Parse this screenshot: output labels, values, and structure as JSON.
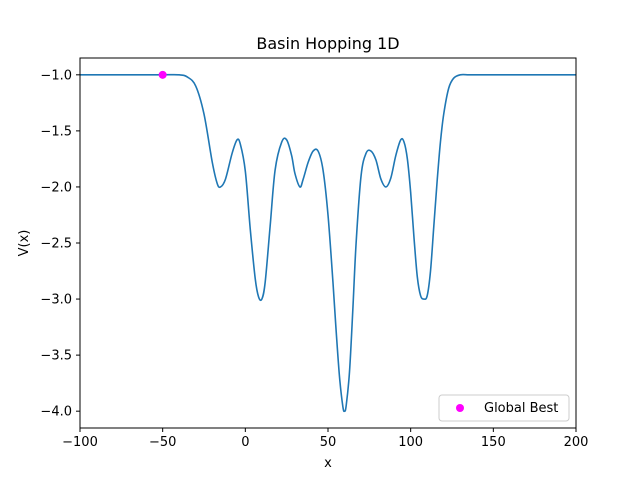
{
  "chart_data": {
    "type": "line",
    "title": "Basin Hopping 1D",
    "xlabel": "x",
    "ylabel": "V(x)",
    "xlim": [
      -100,
      200
    ],
    "ylim": [
      -4.15,
      -0.85
    ],
    "xticks": [
      -100,
      -50,
      0,
      50,
      100,
      150,
      200
    ],
    "yticks": [
      -4.0,
      -3.5,
      -3.0,
      -2.5,
      -2.0,
      -1.5,
      -1.0
    ],
    "xtick_labels": [
      "−100",
      "−50",
      "0",
      "50",
      "100",
      "150",
      "200"
    ],
    "ytick_labels": [
      "−4.0",
      "−3.5",
      "−3.0",
      "−2.5",
      "−2.0",
      "−1.5",
      "−1.0"
    ],
    "grid": false,
    "legend_position": "lower-right",
    "series": [
      {
        "kind": "line",
        "color": "#1f77b4",
        "x": [
          -100,
          -60,
          -50,
          -40,
          -35,
          -30,
          -25,
          -20,
          -17,
          -15,
          -12,
          -8,
          -5,
          -3,
          0,
          3,
          6,
          8,
          10,
          12,
          15,
          18,
          22,
          25,
          28,
          30,
          33,
          35,
          38,
          41,
          44,
          47,
          50,
          53,
          55,
          57,
          59,
          60,
          61,
          63,
          65,
          67,
          70,
          73,
          76,
          79,
          82,
          85,
          88,
          91,
          94,
          96,
          98,
          100,
          102,
          104,
          106,
          108,
          110,
          112,
          114,
          116,
          118,
          120,
          123,
          126,
          130,
          135,
          140,
          150,
          200
        ],
        "y": [
          -1.0,
          -1.0,
          -1.0,
          -1.0,
          -1.02,
          -1.1,
          -1.35,
          -1.78,
          -1.97,
          -2.0,
          -1.93,
          -1.7,
          -1.58,
          -1.62,
          -1.86,
          -2.38,
          -2.82,
          -2.98,
          -3.0,
          -2.85,
          -2.35,
          -1.85,
          -1.6,
          -1.58,
          -1.72,
          -1.88,
          -2.0,
          -1.93,
          -1.78,
          -1.68,
          -1.68,
          -1.85,
          -2.25,
          -2.85,
          -3.3,
          -3.7,
          -3.96,
          -4.0,
          -3.95,
          -3.65,
          -3.1,
          -2.5,
          -1.9,
          -1.7,
          -1.68,
          -1.76,
          -1.93,
          -2.0,
          -1.92,
          -1.72,
          -1.58,
          -1.6,
          -1.75,
          -2.05,
          -2.45,
          -2.8,
          -2.97,
          -3.0,
          -2.97,
          -2.75,
          -2.35,
          -1.95,
          -1.6,
          -1.35,
          -1.12,
          -1.03,
          -1.0,
          -1.0,
          -1.0,
          -1.0,
          -1.0
        ]
      },
      {
        "kind": "point",
        "name": "Global Best",
        "color": "#ff00ff",
        "x": [
          -50
        ],
        "y": [
          -1.0
        ]
      }
    ]
  }
}
